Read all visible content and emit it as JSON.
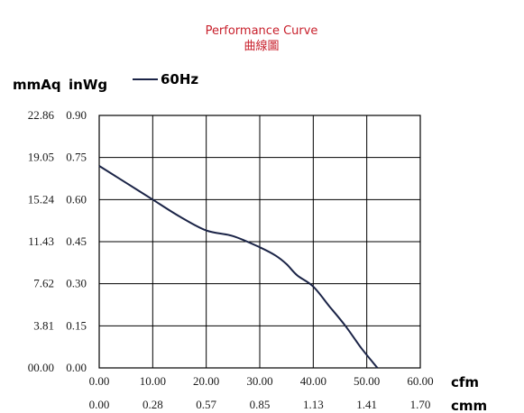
{
  "chart_data": {
    "type": "line",
    "title": "Performance Curve",
    "subtitle": "曲線圖",
    "y_units": [
      "mmAq",
      "inWg"
    ],
    "x_units": [
      "cfm",
      "cmm"
    ],
    "xlim": [
      0,
      60
    ],
    "ylim": [
      0,
      0.9
    ],
    "x_ticks_cfm": [
      "0.00",
      "10.00",
      "20.00",
      "30.00",
      "40.00",
      "50.00",
      "60.00"
    ],
    "x_ticks_cmm": [
      "0.00",
      "0.28",
      "0.57",
      "0.85",
      "1.13",
      "1.41",
      "1.70"
    ],
    "y_ticks_inwg": [
      "0.00",
      "0.15",
      "0.30",
      "0.45",
      "0.60",
      "0.75",
      "0.90"
    ],
    "y_ticks_mmaq": [
      "00.00",
      "3.81",
      "7.62",
      "11.43",
      "15.24",
      "19.05",
      "22.86"
    ],
    "grid": true,
    "legend_position": "top-left",
    "series": [
      {
        "name": "60Hz",
        "color": "#1b2447",
        "x": [
          0,
          5,
          10,
          15,
          20,
          25,
          30,
          33,
          35,
          37,
          40,
          43,
          46,
          49,
          52
        ],
        "y": [
          0.72,
          0.66,
          0.6,
          0.54,
          0.49,
          0.47,
          0.43,
          0.4,
          0.37,
          0.33,
          0.29,
          0.22,
          0.15,
          0.07,
          0.0
        ]
      }
    ]
  }
}
